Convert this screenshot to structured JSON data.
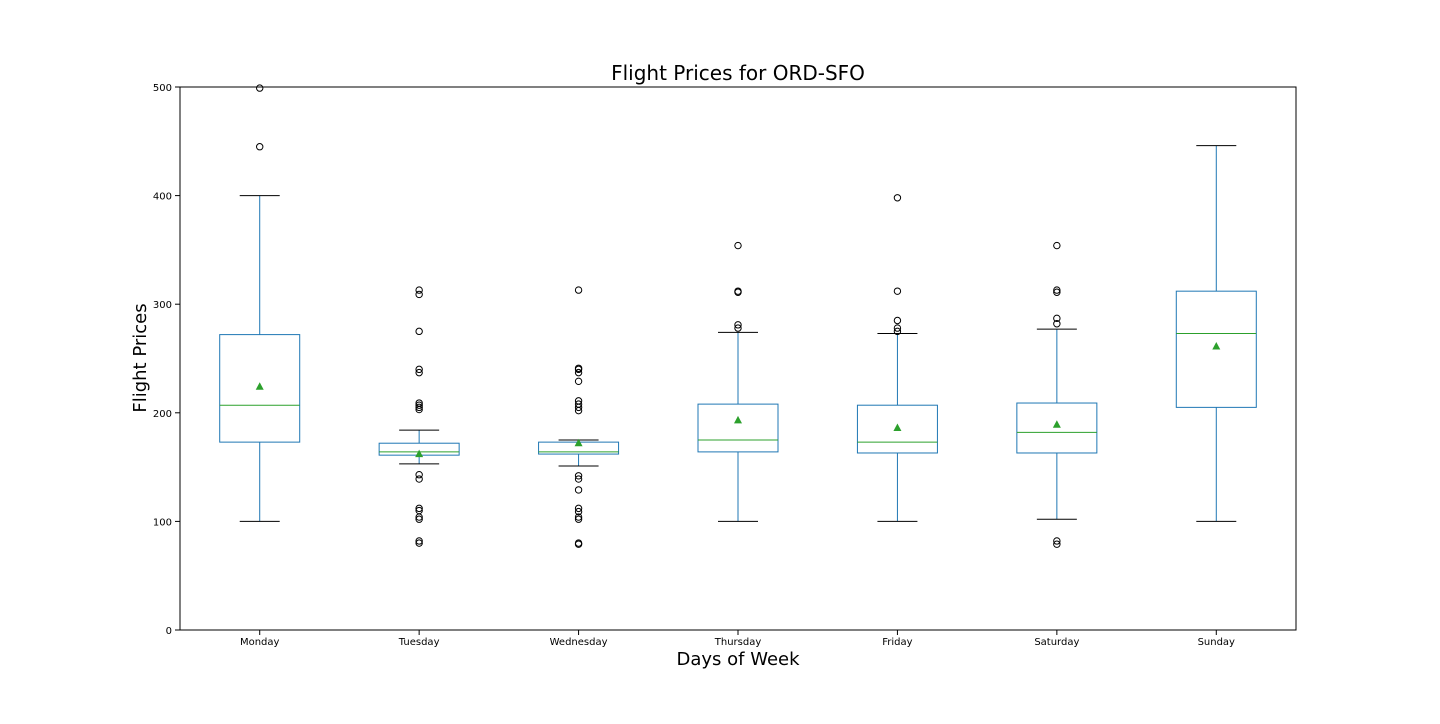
{
  "chart_data": {
    "type": "boxplot",
    "title": "Flight Prices for ORD-SFO",
    "xlabel": "Days of Week",
    "ylabel": "Flight Prices",
    "ylim": [
      0,
      500
    ],
    "yticks": [
      0,
      100,
      200,
      300,
      400,
      500
    ],
    "grid": false,
    "legend": "none",
    "colors": {
      "box": "#1f77b4",
      "median": "#2ca02c",
      "mean": "#2ca02c",
      "cap": "#000000",
      "flier": "#000000"
    },
    "categories": [
      "Monday",
      "Tuesday",
      "Wednesday",
      "Thursday",
      "Friday",
      "Saturday",
      "Sunday"
    ],
    "series": [
      {
        "category": "Monday",
        "whisker_low": 100,
        "q1": 173,
        "median": 207,
        "q3": 272,
        "whisker_high": 400,
        "mean": 224,
        "outliers": [
          445,
          499
        ]
      },
      {
        "category": "Tuesday",
        "whisker_low": 153,
        "q1": 161,
        "median": 164,
        "q3": 172,
        "whisker_high": 184,
        "mean": 162,
        "outliers": [
          80,
          82,
          102,
          104,
          110,
          112,
          139,
          143,
          203,
          205,
          207,
          209,
          237,
          240,
          275,
          309,
          313
        ]
      },
      {
        "category": "Wednesday",
        "whisker_low": 151,
        "q1": 162,
        "median": 164,
        "q3": 173,
        "whisker_high": 175,
        "mean": 172,
        "outliers": [
          79,
          80,
          102,
          104,
          109,
          112,
          129,
          139,
          142,
          202,
          205,
          208,
          211,
          229,
          237,
          240,
          241,
          313
        ]
      },
      {
        "category": "Thursday",
        "whisker_low": 100,
        "q1": 164,
        "median": 175,
        "q3": 208,
        "whisker_high": 274,
        "mean": 193,
        "outliers": [
          278,
          281,
          311,
          312,
          354
        ]
      },
      {
        "category": "Friday",
        "whisker_low": 100,
        "q1": 163,
        "median": 173,
        "q3": 207,
        "whisker_high": 273,
        "mean": 186,
        "outliers": [
          275,
          278,
          285,
          312,
          398
        ]
      },
      {
        "category": "Saturday",
        "whisker_low": 102,
        "q1": 163,
        "median": 182,
        "q3": 209,
        "whisker_high": 277,
        "mean": 189,
        "outliers": [
          79,
          82,
          282,
          287,
          311,
          313,
          354
        ]
      },
      {
        "category": "Sunday",
        "whisker_low": 100,
        "q1": 205,
        "median": 273,
        "q3": 312,
        "whisker_high": 446,
        "mean": 261,
        "outliers": []
      }
    ]
  }
}
